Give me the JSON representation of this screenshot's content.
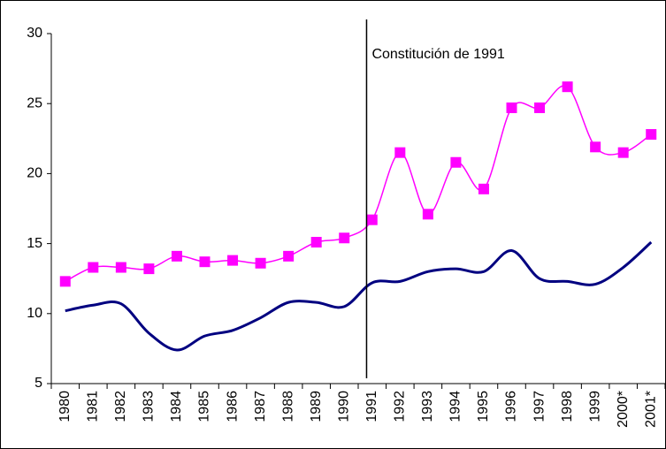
{
  "chart_data": {
    "type": "line",
    "categories": [
      "1980",
      "1981",
      "1982",
      "1983",
      "1984",
      "1985",
      "1986",
      "1987",
      "1988",
      "1989",
      "1990",
      "1991",
      "1992",
      "1993",
      "1994",
      "1995",
      "1996",
      "1997",
      "1998",
      "1999",
      "2000*",
      "2001*"
    ],
    "series": [
      {
        "color": "#ff00ff",
        "marker": "square",
        "values": [
          12.3,
          13.3,
          13.3,
          13.2,
          14.1,
          13.7,
          13.8,
          13.6,
          14.1,
          15.1,
          15.4,
          16.7,
          21.5,
          17.1,
          20.8,
          18.9,
          24.7,
          24.7,
          26.2,
          21.9,
          21.5,
          22.8
        ]
      },
      {
        "color": "#000080",
        "values": [
          10.2,
          10.6,
          10.7,
          8.6,
          7.4,
          8.4,
          8.8,
          9.7,
          10.8,
          10.8,
          10.5,
          12.2,
          12.3,
          13.0,
          13.2,
          13.0,
          14.5,
          12.5,
          12.3,
          12.1,
          13.3,
          15.1
        ]
      }
    ],
    "annotation": {
      "text": "Constitución de 1991",
      "x": "1991"
    },
    "ylim": [
      5,
      30
    ],
    "yticks": [
      5,
      10,
      15,
      20,
      25,
      30
    ],
    "grid": false,
    "smooth": true
  }
}
